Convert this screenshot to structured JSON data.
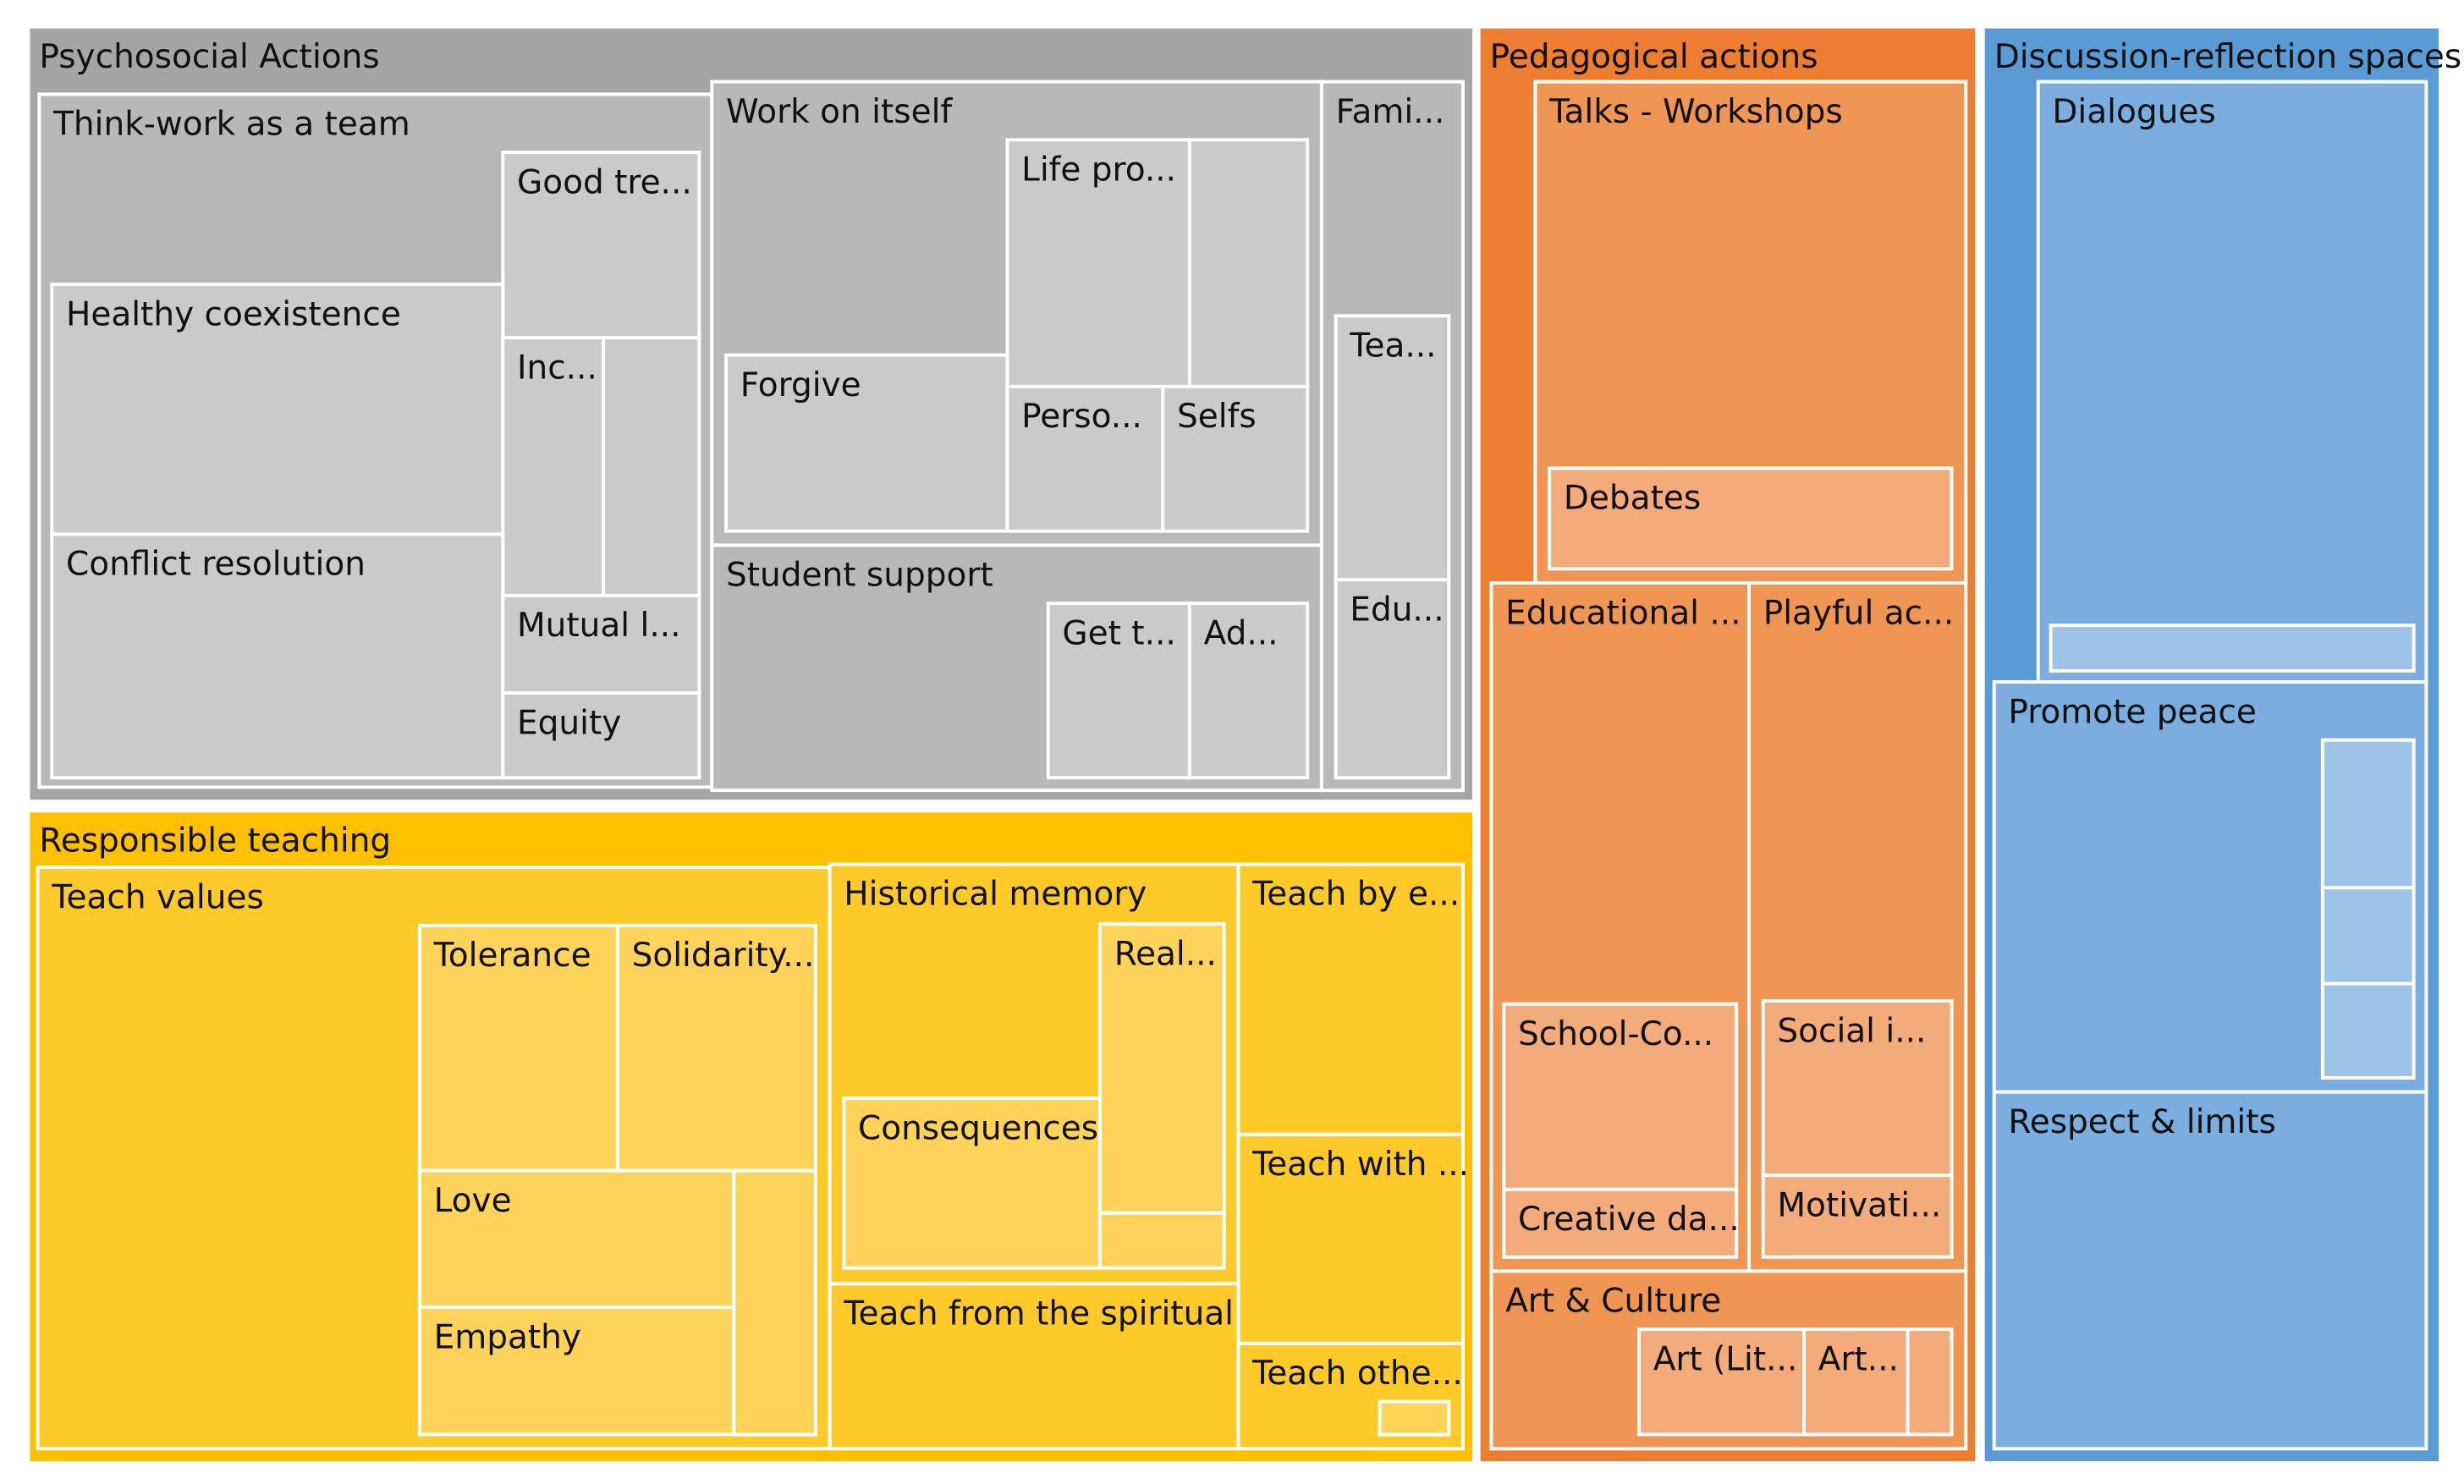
{
  "chart_data": {
    "type": "treemap",
    "title": "",
    "colors": {
      "Psychosocial Actions": "#a5a5a5",
      "Responsible teaching": "#ffc000",
      "Pedagogical actions": "#ed7d31",
      "Discussion-reflection spaces": "#5b9bd5"
    },
    "groups": [
      {
        "name": "Psychosocial Actions",
        "children": [
          {
            "name": "Think-work as a team",
            "children": [
              {
                "name": "Good tre..."
              },
              {
                "name": "Healthy coexistence"
              },
              {
                "name": "Inc..."
              },
              {
                "name": ""
              },
              {
                "name": "Conflict resolution"
              },
              {
                "name": "Mutual l..."
              },
              {
                "name": "Equity"
              }
            ]
          },
          {
            "name": "Work on itself",
            "children": [
              {
                "name": "Life pro..."
              },
              {
                "name": ""
              },
              {
                "name": "Forgive"
              },
              {
                "name": "Perso..."
              },
              {
                "name": "Selfs"
              }
            ]
          },
          {
            "name": "Student support",
            "children": [
              {
                "name": "Get t..."
              },
              {
                "name": "Ad..."
              }
            ]
          },
          {
            "name": "Fami...",
            "children": [
              {
                "name": "Tea..."
              },
              {
                "name": "Edu..."
              }
            ]
          }
        ]
      },
      {
        "name": "Responsible teaching",
        "children": [
          {
            "name": "Teach values",
            "children": [
              {
                "name": "Tolerance"
              },
              {
                "name": "Solidarity..."
              },
              {
                "name": "Love"
              },
              {
                "name": "Empathy"
              },
              {
                "name": ""
              }
            ]
          },
          {
            "name": "Historical memory",
            "children": [
              {
                "name": "Real..."
              },
              {
                "name": "Consequences"
              },
              {
                "name": ""
              }
            ]
          },
          {
            "name": "Teach by e..."
          },
          {
            "name": "Teach with ..."
          },
          {
            "name": "Teach from the spiritual"
          },
          {
            "name": "Teach othe...",
            "children": [
              {
                "name": ""
              }
            ]
          }
        ]
      },
      {
        "name": "Pedagogical actions",
        "children": [
          {
            "name": "Talks - Workshops",
            "children": [
              {
                "name": "Debates"
              }
            ]
          },
          {
            "name": "Educational ...",
            "children": [
              {
                "name": "School-Co..."
              },
              {
                "name": "Creative da..."
              }
            ]
          },
          {
            "name": "Playful ac...",
            "children": [
              {
                "name": "Social i..."
              },
              {
                "name": "Motivati..."
              }
            ]
          },
          {
            "name": "Art & Culture",
            "children": [
              {
                "name": "Art (Lit..."
              },
              {
                "name": "Art..."
              },
              {
                "name": ""
              }
            ]
          }
        ]
      },
      {
        "name": "Discussion-reflection spaces",
        "children": [
          {
            "name": "Dialogues",
            "children": [
              {
                "name": ""
              }
            ]
          },
          {
            "name": "Promote peace",
            "children": [
              {
                "name": ""
              },
              {
                "name": ""
              },
              {
                "name": ""
              }
            ]
          },
          {
            "name": "Respect & limits"
          }
        ]
      }
    ]
  }
}
